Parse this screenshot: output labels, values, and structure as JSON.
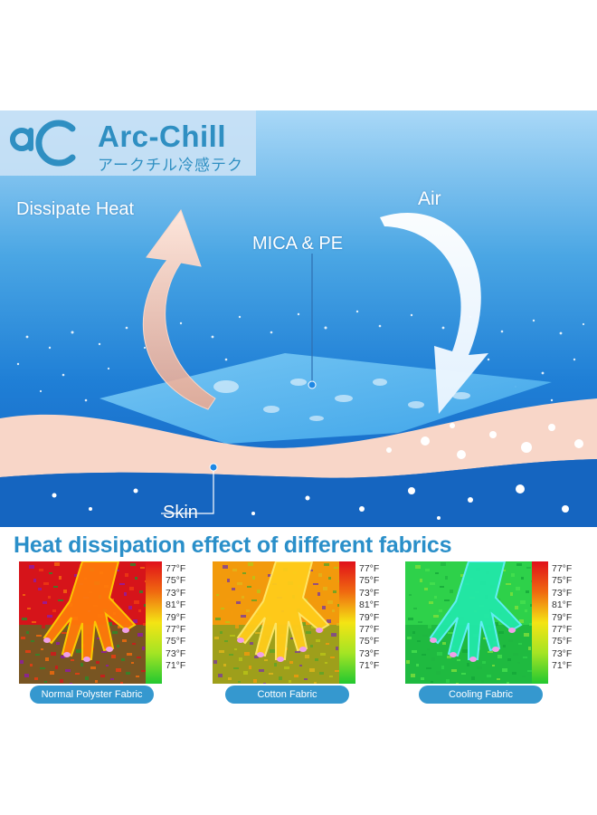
{
  "brand": {
    "name": "Arc-Chill",
    "japanese": "アークチル冷感テク"
  },
  "diagram": {
    "dissipate_label": "Dissipate Heat",
    "air_label": "Air",
    "material_label": "MICA & PE",
    "skin_label": "Skin"
  },
  "section_title": "Heat dissipation effect of different fabrics",
  "temperature_scale": [
    "77°F",
    "75°F",
    "73°F",
    "81°F",
    "79°F",
    "77°F",
    "75°F",
    "73°F",
    "71°F"
  ],
  "fabrics": [
    {
      "label": "Normal Polyster Fabric",
      "tone": "hot"
    },
    {
      "label": "Cotton Fabric",
      "tone": "warm"
    },
    {
      "label": "Cooling Fabric",
      "tone": "cool"
    }
  ],
  "colors": {
    "accent": "#2a8fc9",
    "pill": "#3598cf",
    "sky_top": "#a9d8f7",
    "sea": "#1565c0",
    "skin": "#f8d6c8",
    "arrow_warm": "#f4b9a3"
  }
}
